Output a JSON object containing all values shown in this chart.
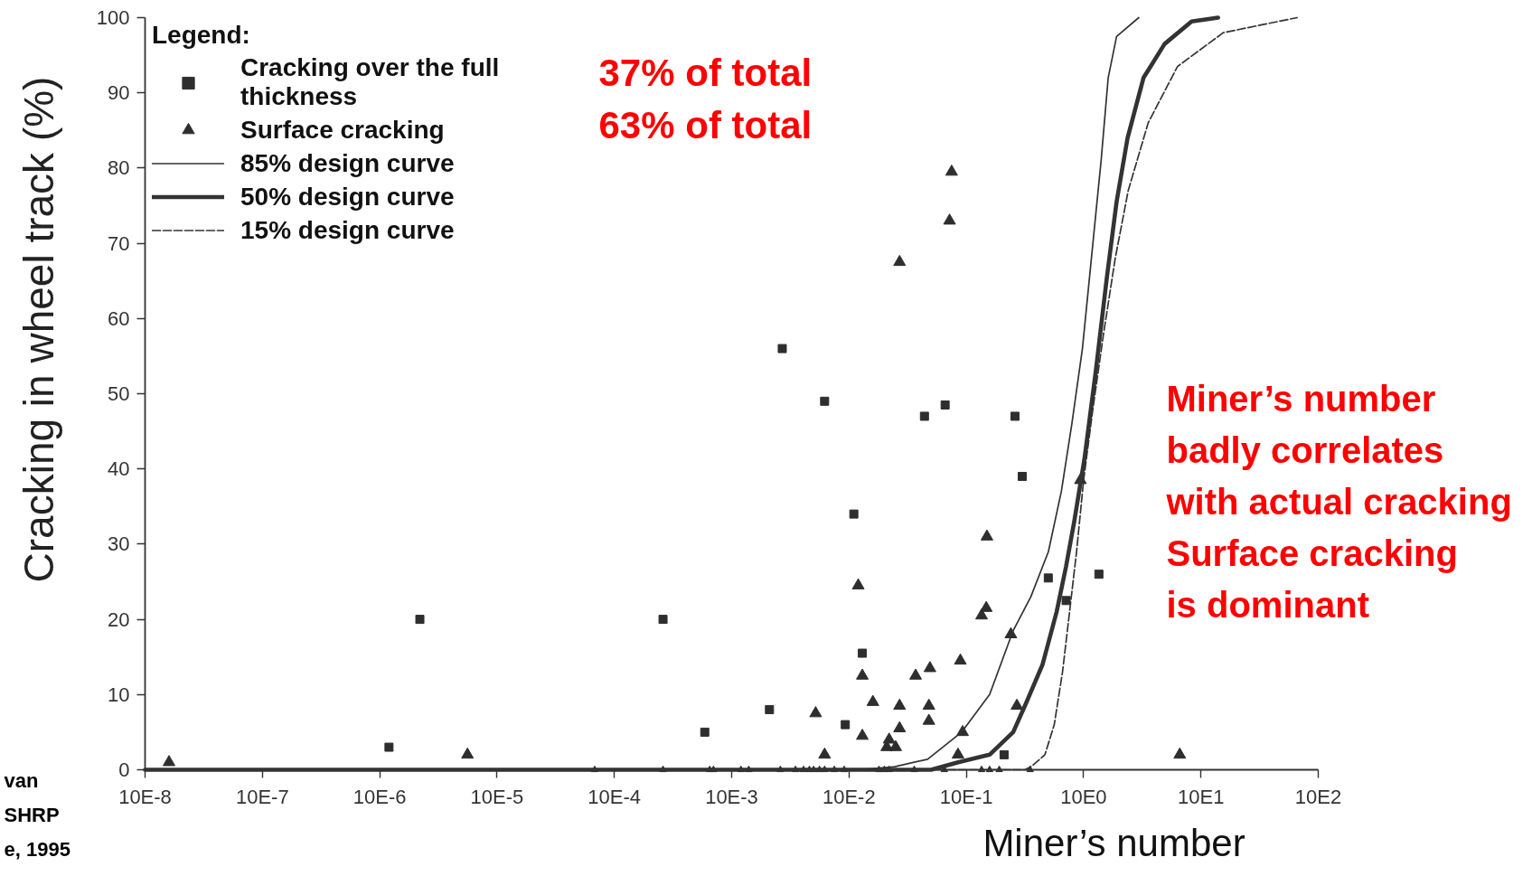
{
  "chart_data": {
    "type": "scatter",
    "xlabel": "Miner’s number",
    "ylabel": "Cracking in wheel track (%)",
    "legend_title": "Legend:",
    "legend": "top left",
    "log": "x",
    "xlim": [
      1e-07,
      1000
    ],
    "xticks": [
      {
        "value": 1e-07,
        "label": "10E-8"
      },
      {
        "value": 1e-06,
        "label": "10E-7"
      },
      {
        "value": 1e-05,
        "label": "10E-6"
      },
      {
        "value": 0.0001,
        "label": "10E-5"
      },
      {
        "value": 0.001,
        "label": "10E-4"
      },
      {
        "value": 0.01,
        "label": "10E-3"
      },
      {
        "value": 0.1,
        "label": "10E-2"
      },
      {
        "value": 1,
        "label": "10E-1"
      },
      {
        "value": 10,
        "label": "10E0"
      },
      {
        "value": 100,
        "label": "10E1"
      },
      {
        "value": 1000,
        "label": "10E2"
      }
    ],
    "ylim": [
      0,
      100
    ],
    "yticks": [
      0,
      10,
      20,
      30,
      40,
      50,
      60,
      70,
      80,
      90,
      100
    ],
    "series": [
      {
        "name": "Cracking over the full thickness",
        "marker": "square",
        "color": "#2e2e2e",
        "x": [
          2.2e-05,
          1.2e-05,
          0.0026,
          0.0059,
          0.021,
          0.027,
          0.062,
          0.093,
          0.11,
          0.13,
          0.44,
          0.66,
          2.6,
          3.0,
          5.0,
          7.1,
          13.5,
          2.1
        ],
        "values": [
          20,
          3,
          20,
          5,
          8,
          56,
          49,
          6,
          34,
          15.5,
          47,
          48.5,
          47,
          39,
          25.5,
          22.5,
          26,
          2
        ]
      },
      {
        "name": "Surface cracking",
        "marker": "triangle",
        "color": "#2e2e2e",
        "x": [
          1.6e-07,
          5.6e-05,
          66,
          0.75,
          0.72,
          0.27,
          0.12,
          1.5,
          1.35,
          1.48,
          2.4,
          0.89,
          0.13,
          0.37,
          0.49,
          0.16,
          0.052,
          0.27,
          0.48,
          0.48,
          0.13,
          0.062,
          0.22,
          0.21,
          0.25,
          0.27,
          0.93,
          0.85,
          2.7,
          9.4
        ],
        "values": [
          1,
          2,
          2,
          79.5,
          73,
          67.5,
          24.5,
          31,
          20.5,
          21.5,
          18,
          14.5,
          12.5,
          12.5,
          13.5,
          9,
          7.5,
          8.5,
          8.5,
          6.5,
          4.5,
          2,
          4,
          3,
          3,
          5.5,
          5,
          2,
          8.5,
          38.5
        ]
      },
      {
        "marker": "triangle",
        "color": "#2e2e2e",
        "x": [
          0.00068,
          0.0026,
          0.0065,
          0.007,
          0.012,
          0.014,
          0.026,
          0.035,
          0.041,
          0.046,
          0.05,
          0.056,
          0.062,
          0.075,
          0.091,
          0.18,
          0.2,
          0.22,
          0.36,
          0.65,
          1.35,
          1.58,
          1.91,
          3.5
        ],
        "values": [
          0,
          0,
          0,
          0,
          0,
          0,
          0,
          0,
          0,
          0,
          0,
          0,
          0,
          0,
          0,
          0,
          0,
          0,
          0,
          0,
          0,
          0,
          0,
          0
        ]
      },
      {
        "name": "85% design curve",
        "type": "line",
        "line_style": "solid",
        "color": "#333333",
        "x": [
          1e-07,
          0.123,
          0.245,
          0.468,
          0.912,
          1.58,
          2.51,
          3.55,
          5.01,
          6.46,
          7.94,
          9.77,
          12.0,
          14.1,
          16.2,
          19.1,
          29.5
        ],
        "values": [
          0,
          0,
          0.4,
          1.4,
          5,
          10,
          18.5,
          23,
          29,
          37,
          46,
          56,
          70,
          81,
          92,
          97.5,
          100
        ]
      },
      {
        "name": "50% design curve",
        "type": "line",
        "line_style": "solid",
        "color": "#333333",
        "x": [
          1e-07,
          0.501,
          0.851,
          1.58,
          2.51,
          3.16,
          4.47,
          5.89,
          7.08,
          8.32,
          10.2,
          12.7,
          15.8,
          19.1,
          23.7,
          32.4,
          49.0,
          83.2,
          140
        ],
        "values": [
          0,
          0,
          1,
          2,
          5,
          8.5,
          14,
          21,
          27,
          33,
          41.5,
          53,
          65.5,
          75.5,
          84,
          92,
          96.5,
          99.5,
          100
        ]
      },
      {
        "name": "15% design curve",
        "type": "line",
        "line_style": "dashed",
        "color": "#333333",
        "x": [
          1e-07,
          3.16,
          3.63,
          4.68,
          5.62,
          6.61,
          7.59,
          8.71,
          10,
          12.0,
          14.8,
          18.6,
          24.0,
          35.5,
          63.1,
          155,
          661
        ],
        "values": [
          0,
          0,
          0.5,
          2,
          6,
          13,
          21,
          29,
          38.5,
          48,
          58,
          68,
          77,
          86,
          93.5,
          98,
          100
        ]
      }
    ],
    "annotations": [
      "37% of total",
      "63% of total",
      "Miner’s number\nbadly correlates\nwith actual cracking\nSurface cracking\nis dominant",
      "van\nSHRP\ne, 1995"
    ]
  }
}
